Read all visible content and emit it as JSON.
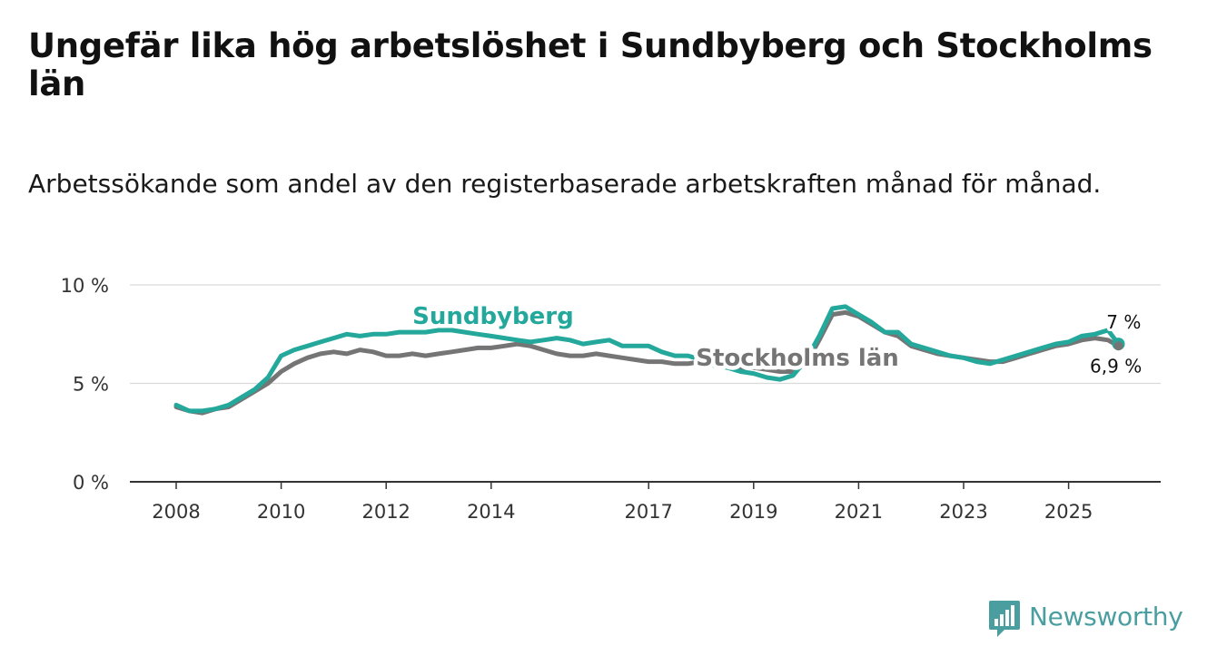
{
  "title": "Ungefär lika hög arbetslöshet i Sundbyberg och Stockholms län",
  "subtitle": "Arbetssökande som andel av den registerbaserade arbetskraften månad för månad.",
  "brand": {
    "name": "Newsworthy",
    "color": "#4a9ea0"
  },
  "chart_data": {
    "type": "line",
    "title": "Ungefär lika hög arbetslöshet i Sundbyberg och Stockholms län",
    "xlabel": "",
    "ylabel": "",
    "xlim": [
      2008,
      2026.8
    ],
    "ylim": [
      0,
      10
    ],
    "grid": true,
    "y_ticks": [
      {
        "value": 0,
        "label": "0 %"
      },
      {
        "value": 5,
        "label": "5 %"
      },
      {
        "value": 10,
        "label": "10 %"
      }
    ],
    "x_ticks": [
      {
        "value": 2008,
        "label": "2008"
      },
      {
        "value": 2010,
        "label": "2010"
      },
      {
        "value": 2012,
        "label": "2012"
      },
      {
        "value": 2014,
        "label": "2014"
      },
      {
        "value": 2017,
        "label": "2017"
      },
      {
        "value": 2019,
        "label": "2019"
      },
      {
        "value": 2021,
        "label": "2021"
      },
      {
        "value": 2023,
        "label": "2023"
      },
      {
        "value": 2025,
        "label": "2025"
      }
    ],
    "series": [
      {
        "name": "Stockholms län",
        "color": "#757575",
        "end_label": "6,9 %",
        "points": [
          [
            2008.0,
            3.8
          ],
          [
            2008.25,
            3.6
          ],
          [
            2008.5,
            3.5
          ],
          [
            2008.75,
            3.7
          ],
          [
            2009.0,
            3.8
          ],
          [
            2009.25,
            4.2
          ],
          [
            2009.5,
            4.6
          ],
          [
            2009.75,
            5.0
          ],
          [
            2010.0,
            5.6
          ],
          [
            2010.25,
            6.0
          ],
          [
            2010.5,
            6.3
          ],
          [
            2010.75,
            6.5
          ],
          [
            2011.0,
            6.6
          ],
          [
            2011.25,
            6.5
          ],
          [
            2011.5,
            6.7
          ],
          [
            2011.75,
            6.6
          ],
          [
            2012.0,
            6.4
          ],
          [
            2012.25,
            6.4
          ],
          [
            2012.5,
            6.5
          ],
          [
            2012.75,
            6.4
          ],
          [
            2013.0,
            6.5
          ],
          [
            2013.25,
            6.6
          ],
          [
            2013.5,
            6.7
          ],
          [
            2013.75,
            6.8
          ],
          [
            2014.0,
            6.8
          ],
          [
            2014.25,
            6.9
          ],
          [
            2014.5,
            7.0
          ],
          [
            2014.75,
            6.9
          ],
          [
            2015.0,
            6.7
          ],
          [
            2015.25,
            6.5
          ],
          [
            2015.5,
            6.4
          ],
          [
            2015.75,
            6.4
          ],
          [
            2016.0,
            6.5
          ],
          [
            2016.25,
            6.4
          ],
          [
            2016.5,
            6.3
          ],
          [
            2016.75,
            6.2
          ],
          [
            2017.0,
            6.1
          ],
          [
            2017.25,
            6.1
          ],
          [
            2017.5,
            6.0
          ],
          [
            2017.75,
            6.0
          ],
          [
            2018.0,
            6.1
          ],
          [
            2018.25,
            6.0
          ],
          [
            2018.5,
            5.9
          ],
          [
            2018.75,
            5.8
          ],
          [
            2019.0,
            5.8
          ],
          [
            2019.25,
            5.7
          ],
          [
            2019.5,
            5.6
          ],
          [
            2019.75,
            5.6
          ],
          [
            2020.0,
            6.0
          ],
          [
            2020.25,
            7.2
          ],
          [
            2020.5,
            8.5
          ],
          [
            2020.75,
            8.6
          ],
          [
            2021.0,
            8.4
          ],
          [
            2021.25,
            8.0
          ],
          [
            2021.5,
            7.6
          ],
          [
            2021.75,
            7.4
          ],
          [
            2022.0,
            6.9
          ],
          [
            2022.25,
            6.7
          ],
          [
            2022.5,
            6.5
          ],
          [
            2022.75,
            6.4
          ],
          [
            2023.0,
            6.3
          ],
          [
            2023.25,
            6.2
          ],
          [
            2023.5,
            6.1
          ],
          [
            2023.75,
            6.1
          ],
          [
            2024.0,
            6.3
          ],
          [
            2024.25,
            6.5
          ],
          [
            2024.5,
            6.7
          ],
          [
            2024.75,
            6.9
          ],
          [
            2025.0,
            7.0
          ],
          [
            2025.25,
            7.2
          ],
          [
            2025.5,
            7.3
          ],
          [
            2025.75,
            7.2
          ],
          [
            2025.95,
            6.9
          ]
        ]
      },
      {
        "name": "Sundbyberg",
        "color": "#24a89b",
        "end_label": "7 %",
        "points": [
          [
            2008.0,
            3.9
          ],
          [
            2008.25,
            3.6
          ],
          [
            2008.5,
            3.6
          ],
          [
            2008.75,
            3.7
          ],
          [
            2009.0,
            3.9
          ],
          [
            2009.25,
            4.3
          ],
          [
            2009.5,
            4.7
          ],
          [
            2009.75,
            5.3
          ],
          [
            2010.0,
            6.4
          ],
          [
            2010.25,
            6.7
          ],
          [
            2010.5,
            6.9
          ],
          [
            2010.75,
            7.1
          ],
          [
            2011.0,
            7.3
          ],
          [
            2011.25,
            7.5
          ],
          [
            2011.5,
            7.4
          ],
          [
            2011.75,
            7.5
          ],
          [
            2012.0,
            7.5
          ],
          [
            2012.25,
            7.6
          ],
          [
            2012.5,
            7.6
          ],
          [
            2012.75,
            7.6
          ],
          [
            2013.0,
            7.7
          ],
          [
            2013.25,
            7.7
          ],
          [
            2013.5,
            7.6
          ],
          [
            2013.75,
            7.5
          ],
          [
            2014.0,
            7.4
          ],
          [
            2014.25,
            7.3
          ],
          [
            2014.5,
            7.2
          ],
          [
            2014.75,
            7.1
          ],
          [
            2015.0,
            7.2
          ],
          [
            2015.25,
            7.3
          ],
          [
            2015.5,
            7.2
          ],
          [
            2015.75,
            7.0
          ],
          [
            2016.0,
            7.1
          ],
          [
            2016.25,
            7.2
          ],
          [
            2016.5,
            6.9
          ],
          [
            2016.75,
            6.9
          ],
          [
            2017.0,
            6.9
          ],
          [
            2017.25,
            6.6
          ],
          [
            2017.5,
            6.4
          ],
          [
            2017.75,
            6.4
          ],
          [
            2018.0,
            6.2
          ],
          [
            2018.25,
            5.9
          ],
          [
            2018.5,
            5.8
          ],
          [
            2018.75,
            5.6
          ],
          [
            2019.0,
            5.5
          ],
          [
            2019.25,
            5.3
          ],
          [
            2019.5,
            5.2
          ],
          [
            2019.75,
            5.4
          ],
          [
            2020.0,
            6.2
          ],
          [
            2020.25,
            7.4
          ],
          [
            2020.5,
            8.8
          ],
          [
            2020.75,
            8.9
          ],
          [
            2021.0,
            8.5
          ],
          [
            2021.25,
            8.1
          ],
          [
            2021.5,
            7.6
          ],
          [
            2021.75,
            7.6
          ],
          [
            2022.0,
            7.0
          ],
          [
            2022.25,
            6.8
          ],
          [
            2022.5,
            6.6
          ],
          [
            2022.75,
            6.4
          ],
          [
            2023.0,
            6.3
          ],
          [
            2023.25,
            6.1
          ],
          [
            2023.5,
            6.0
          ],
          [
            2023.75,
            6.2
          ],
          [
            2024.0,
            6.4
          ],
          [
            2024.25,
            6.6
          ],
          [
            2024.5,
            6.8
          ],
          [
            2024.75,
            7.0
          ],
          [
            2025.0,
            7.1
          ],
          [
            2025.25,
            7.4
          ],
          [
            2025.5,
            7.5
          ],
          [
            2025.75,
            7.7
          ],
          [
            2025.95,
            7.0
          ]
        ]
      }
    ]
  }
}
